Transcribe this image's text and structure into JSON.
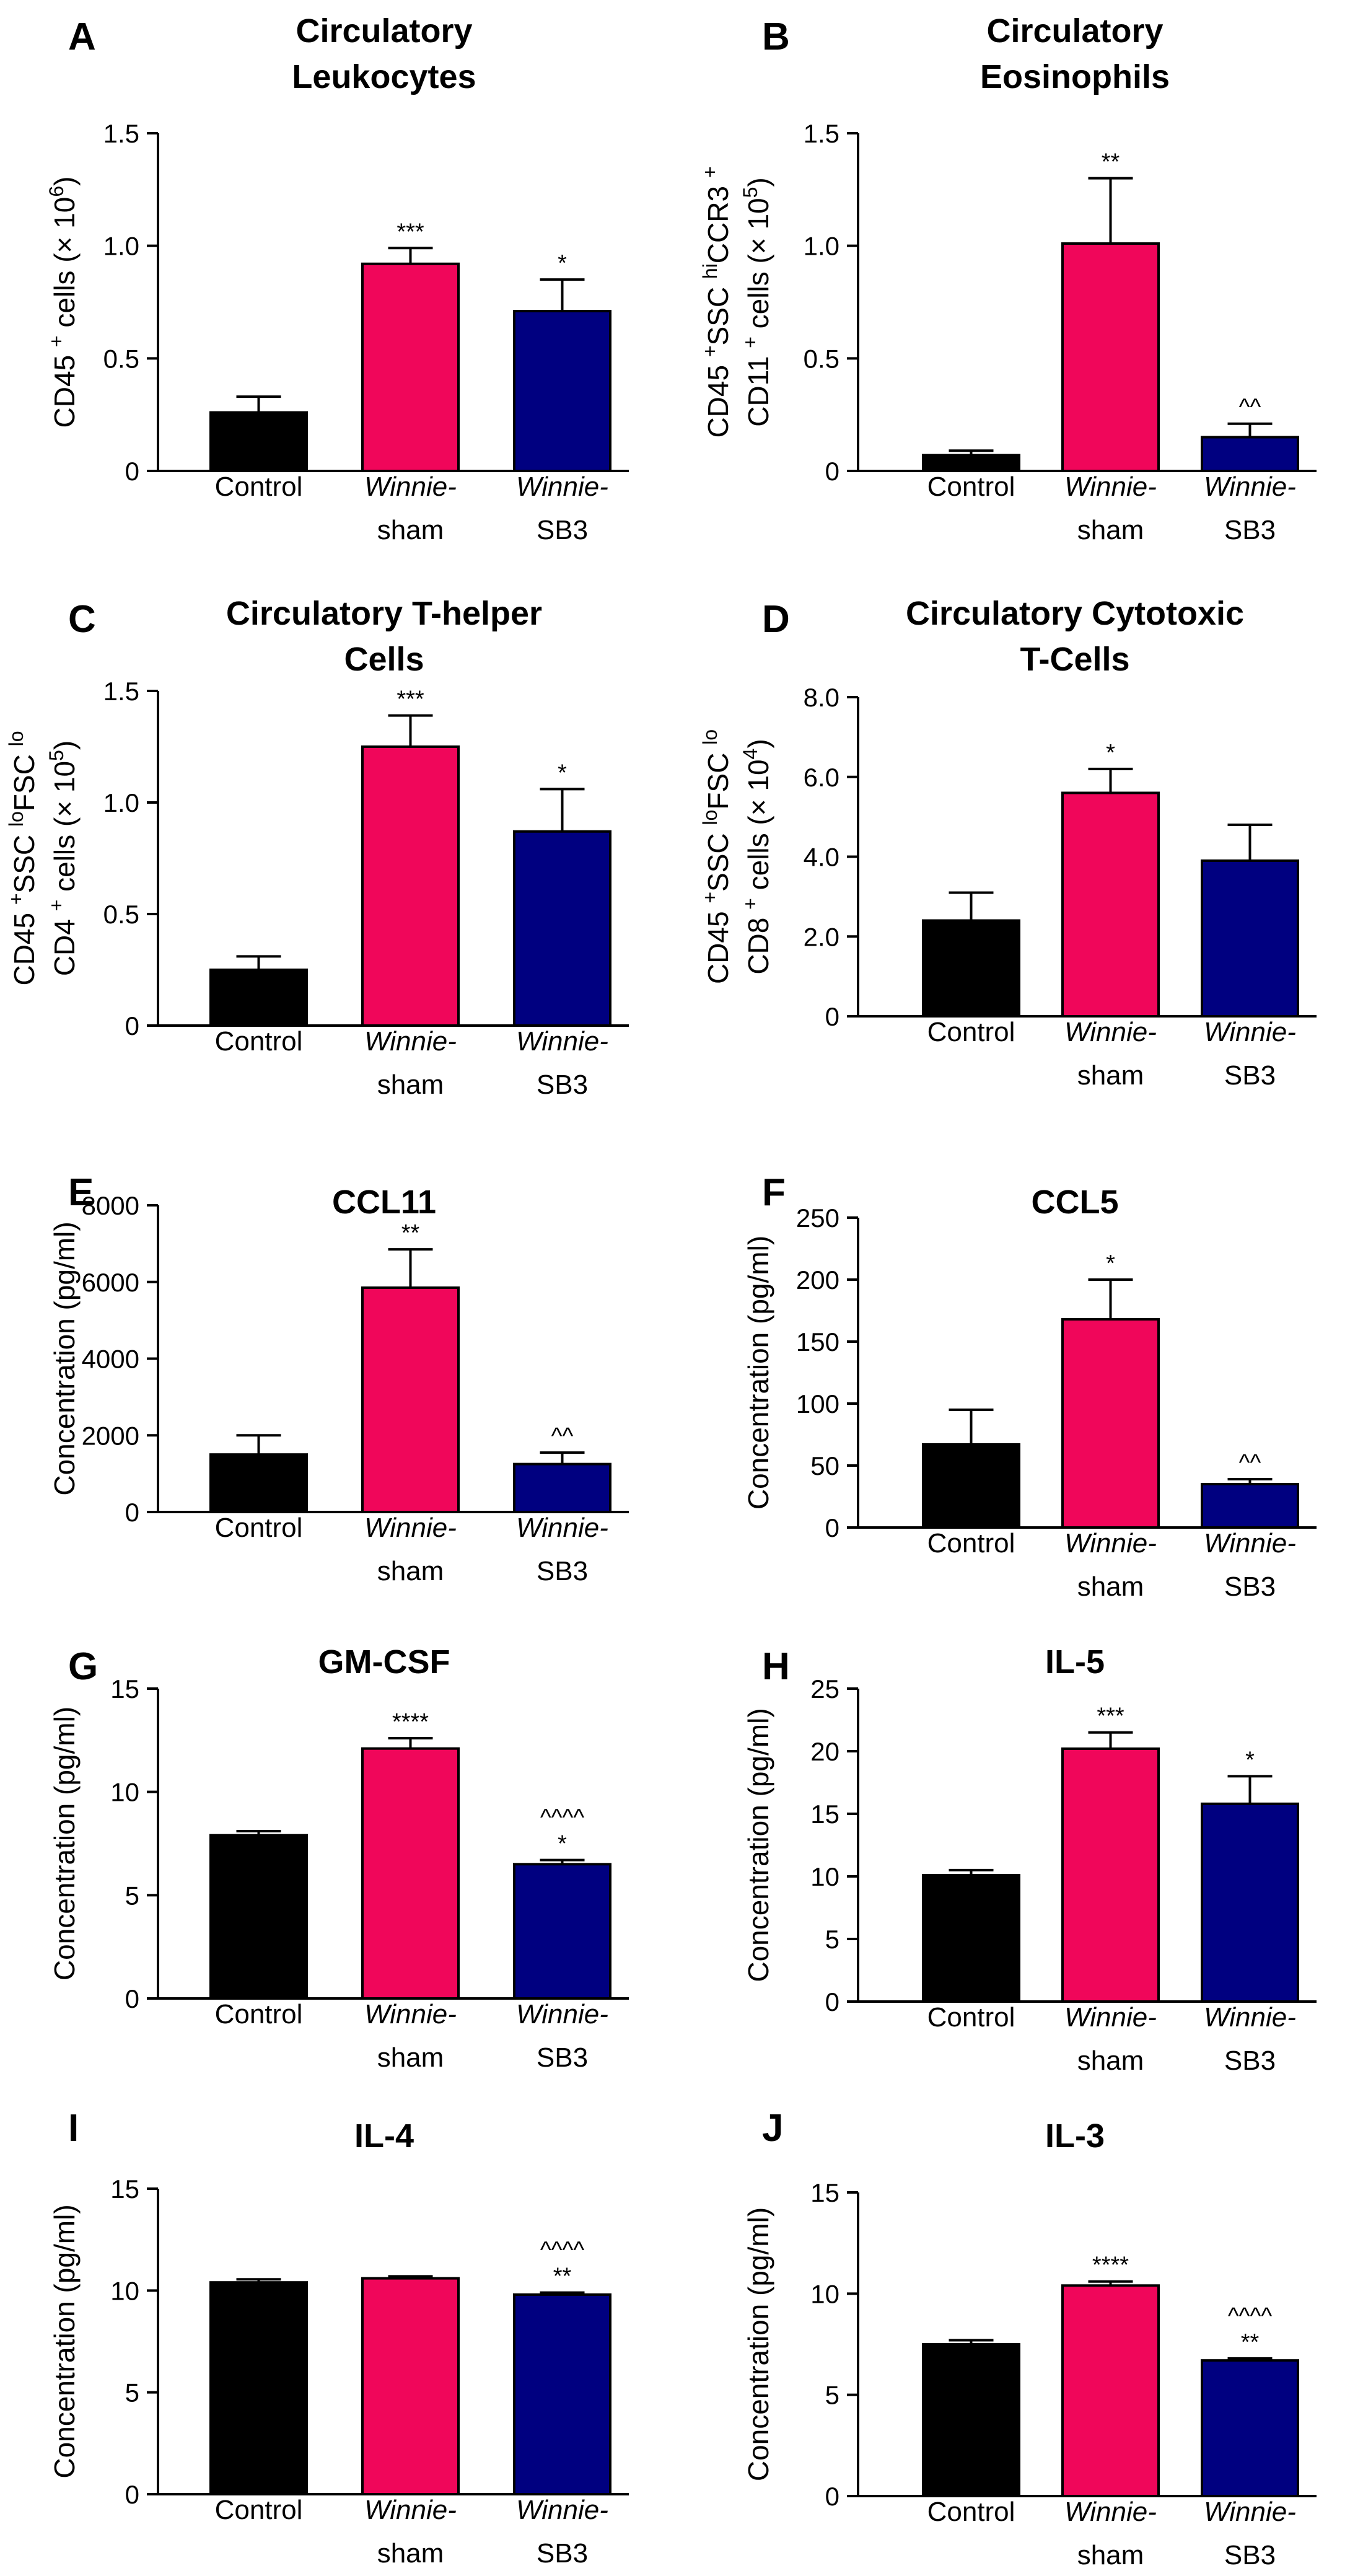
{
  "category_labels": [
    {
      "line1": "Control",
      "line2": "",
      "italic": false
    },
    {
      "line1": "Winnie-",
      "line2": "sham",
      "italic": true
    },
    {
      "line1": "Winnie-",
      "line2": "SB3",
      "italic": true
    }
  ],
  "colors": {
    "control": "#000000",
    "sham": "#f0065a",
    "sb3": "#000080"
  },
  "chart_data": [
    {
      "type": "bar",
      "panel": "A",
      "title_lines": [
        "Circulatory",
        "Leukocytes"
      ],
      "ylabel_lines": [
        [
          {
            "t": "CD45 "
          },
          {
            "t": "+",
            "sup": true
          },
          {
            "t": " cells (× 10"
          },
          {
            "t": "6",
            "sup": true
          },
          {
            "t": ")"
          }
        ]
      ],
      "ylim": [
        0,
        1.5
      ],
      "yticks": [
        "0",
        "0.5",
        "1.0",
        "1.5"
      ],
      "categories": [
        "Control",
        "Winnie-sham",
        "Winnie-SB3"
      ],
      "values": [
        0.26,
        0.92,
        0.71
      ],
      "errors": [
        0.07,
        0.07,
        0.14
      ],
      "annotations": [
        [],
        [
          "***"
        ],
        [
          "*"
        ]
      ]
    },
    {
      "type": "bar",
      "panel": "B",
      "title_lines": [
        "Circulatory",
        "Eosinophils"
      ],
      "ylabel_lines": [
        [
          {
            "t": "CD45 "
          },
          {
            "t": "+",
            "sup": true
          },
          {
            "t": "SSC "
          },
          {
            "t": "hi",
            "sup": true
          },
          {
            "t": "CCR3 "
          },
          {
            "t": "+",
            "sup": true
          }
        ],
        [
          {
            "t": "CD11 "
          },
          {
            "t": "+",
            "sup": true
          },
          {
            "t": " cells (× 10"
          },
          {
            "t": "5",
            "sup": true
          },
          {
            "t": ")"
          }
        ]
      ],
      "ylim": [
        0,
        1.5
      ],
      "yticks": [
        "0",
        "0.5",
        "1.0",
        "1.5"
      ],
      "categories": [
        "Control",
        "Winnie-sham",
        "Winnie-SB3"
      ],
      "values": [
        0.07,
        1.01,
        0.15
      ],
      "errors": [
        0.02,
        0.29,
        0.06
      ],
      "annotations": [
        [],
        [
          "**"
        ],
        [
          "^^"
        ]
      ]
    },
    {
      "type": "bar",
      "panel": "C",
      "title_lines": [
        "Circulatory T-helper",
        "Cells"
      ],
      "ylabel_lines": [
        [
          {
            "t": "CD45 "
          },
          {
            "t": "+",
            "sup": true
          },
          {
            "t": "SSC "
          },
          {
            "t": "lo",
            "sup": true
          },
          {
            "t": "FSC "
          },
          {
            "t": "lo",
            "sup": true
          }
        ],
        [
          {
            "t": "CD4 "
          },
          {
            "t": "+",
            "sup": true
          },
          {
            "t": " cells (× 10"
          },
          {
            "t": "5",
            "sup": true
          },
          {
            "t": ")"
          }
        ]
      ],
      "ylim": [
        0,
        1.5
      ],
      "yticks": [
        "0",
        "0.5",
        "1.0",
        "1.5"
      ],
      "categories": [
        "Control",
        "Winnie-sham",
        "Winnie-SB3"
      ],
      "values": [
        0.25,
        1.25,
        0.87
      ],
      "errors": [
        0.06,
        0.14,
        0.19
      ],
      "annotations": [
        [],
        [
          "***"
        ],
        [
          "*"
        ]
      ]
    },
    {
      "type": "bar",
      "panel": "D",
      "title_lines": [
        "Circulatory Cytotoxic",
        "T-Cells"
      ],
      "ylabel_lines": [
        [
          {
            "t": "CD45 "
          },
          {
            "t": "+",
            "sup": true
          },
          {
            "t": "SSC "
          },
          {
            "t": "lo",
            "sup": true
          },
          {
            "t": "FSC "
          },
          {
            "t": "lo",
            "sup": true
          }
        ],
        [
          {
            "t": "CD8 "
          },
          {
            "t": "+",
            "sup": true
          },
          {
            "t": " cells (× 10"
          },
          {
            "t": "4",
            "sup": true
          },
          {
            "t": ")"
          }
        ]
      ],
      "ylim": [
        0,
        8
      ],
      "yticks": [
        "0",
        "2.0",
        "4.0",
        "6.0",
        "8.0"
      ],
      "categories": [
        "Control",
        "Winnie-sham",
        "Winnie-SB3"
      ],
      "values": [
        2.4,
        5.6,
        3.9
      ],
      "errors": [
        0.7,
        0.6,
        0.9
      ],
      "annotations": [
        [],
        [
          "*"
        ],
        []
      ]
    },
    {
      "type": "bar",
      "panel": "E",
      "title_lines": [
        "CCL11"
      ],
      "ylabel_lines": [
        [
          {
            "t": "Concentration (pg/ml)"
          }
        ]
      ],
      "ylim": [
        0,
        8000
      ],
      "yticks": [
        "0",
        "2000",
        "4000",
        "6000",
        "8000"
      ],
      "categories": [
        "Control",
        "Winnie-sham",
        "Winnie-SB3"
      ],
      "values": [
        1500,
        5850,
        1250
      ],
      "errors": [
        500,
        1000,
        300
      ],
      "annotations": [
        [],
        [
          "**"
        ],
        [
          "^^"
        ]
      ]
    },
    {
      "type": "bar",
      "panel": "F",
      "title_lines": [
        "CCL5"
      ],
      "ylabel_lines": [
        [
          {
            "t": "Concentration (pg/ml)"
          }
        ]
      ],
      "ylim": [
        0,
        250
      ],
      "yticks": [
        "0",
        "50",
        "100",
        "150",
        "200",
        "250"
      ],
      "categories": [
        "Control",
        "Winnie-sham",
        "Winnie-SB3"
      ],
      "values": [
        67,
        168,
        35
      ],
      "errors": [
        28,
        32,
        4
      ],
      "annotations": [
        [],
        [
          "*"
        ],
        [
          "^^"
        ]
      ]
    },
    {
      "type": "bar",
      "panel": "G",
      "title_lines": [
        "GM-CSF"
      ],
      "ylabel_lines": [
        [
          {
            "t": "Concentration (pg/ml)"
          }
        ]
      ],
      "ylim": [
        0,
        15
      ],
      "yticks": [
        "0",
        "5",
        "10",
        "15"
      ],
      "categories": [
        "Control",
        "Winnie-sham",
        "Winnie-SB3"
      ],
      "values": [
        7.9,
        12.1,
        6.5
      ],
      "errors": [
        0.2,
        0.5,
        0.2
      ],
      "annotations": [
        [],
        [
          "****"
        ],
        [
          "^^^^",
          "*"
        ]
      ]
    },
    {
      "type": "bar",
      "panel": "H",
      "title_lines": [
        "IL-5"
      ],
      "ylabel_lines": [
        [
          {
            "t": "Concentration (pg/ml)"
          }
        ]
      ],
      "ylim": [
        0,
        25
      ],
      "yticks": [
        "0",
        "5",
        "10",
        "15",
        "20",
        "25"
      ],
      "categories": [
        "Control",
        "Winnie-sham",
        "Winnie-SB3"
      ],
      "values": [
        10.1,
        20.2,
        15.8
      ],
      "errors": [
        0.4,
        1.3,
        2.2
      ],
      "annotations": [
        [],
        [
          "***"
        ],
        [
          "*"
        ]
      ]
    },
    {
      "type": "bar",
      "panel": "I",
      "title_lines": [
        "IL-4"
      ],
      "ylabel_lines": [
        [
          {
            "t": "Concentration (pg/ml)"
          }
        ]
      ],
      "ylim": [
        0,
        15
      ],
      "yticks": [
        "0",
        "5",
        "10",
        "15"
      ],
      "categories": [
        "Control",
        "Winnie-sham",
        "Winnie-SB3"
      ],
      "values": [
        10.4,
        10.6,
        9.8
      ],
      "errors": [
        0.15,
        0.1,
        0.1
      ],
      "annotations": [
        [],
        [],
        [
          "^^^^",
          "**"
        ]
      ]
    },
    {
      "type": "bar",
      "panel": "J",
      "title_lines": [
        "IL-3"
      ],
      "ylabel_lines": [
        [
          {
            "t": "Concentration (pg/ml)"
          }
        ]
      ],
      "ylim": [
        0,
        15
      ],
      "yticks": [
        "0",
        "5",
        "10",
        "15"
      ],
      "categories": [
        "Control",
        "Winnie-sham",
        "Winnie-SB3"
      ],
      "values": [
        7.5,
        10.4,
        6.7
      ],
      "errors": [
        0.2,
        0.2,
        0.1
      ],
      "annotations": [
        [],
        [
          "****"
        ],
        [
          "^^^^",
          "**"
        ]
      ]
    }
  ]
}
